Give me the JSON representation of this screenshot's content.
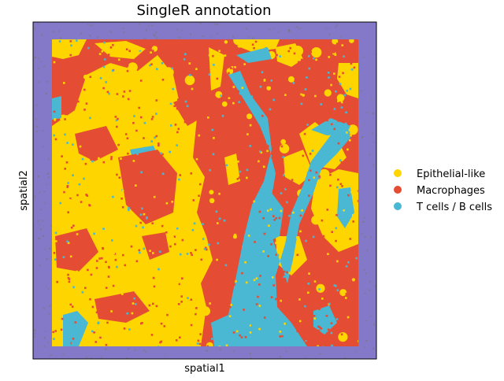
{
  "chart_data": {
    "type": "scatter",
    "title": "SingleR annotation",
    "xlabel": "spatial1",
    "ylabel": "spatial2",
    "grid": false,
    "legend_position": "right",
    "background_color": "#8479c8",
    "background_speckle_color": "#777777",
    "series": [
      {
        "name": "Epithelial-like",
        "color": "#ffd500"
      },
      {
        "name": "Macrophages",
        "color": "#e44d33"
      },
      {
        "name": "T cells / B cells",
        "color": "#4ab7d3"
      }
    ]
  }
}
